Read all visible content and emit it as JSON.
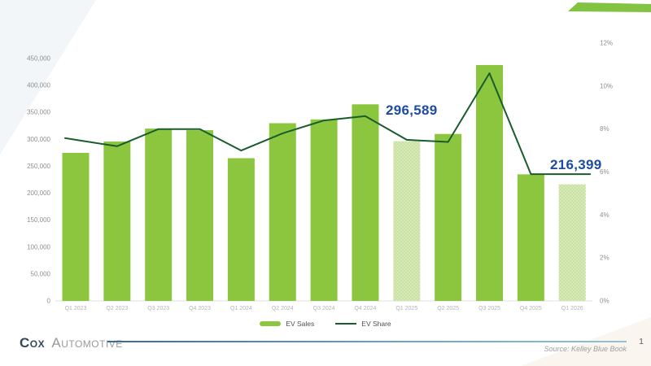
{
  "chart_data": {
    "type": "bar+line",
    "title": "",
    "grid": false,
    "categories": [
      "Q1 2023",
      "Q2 2023",
      "Q3 2023",
      "Q4 2023",
      "Q1 2024",
      "Q2 2024",
      "Q3 2024",
      "Q4 2024",
      "Q1 2025",
      "Q2 2025",
      "Q3 2025",
      "Q4 2025",
      "Q1 2026"
    ],
    "series": [
      {
        "name": "EV Sales",
        "type": "bar",
        "axis": "left",
        "values": [
          275000,
          296000,
          320000,
          317000,
          265000,
          330000,
          337000,
          365000,
          296589,
          310000,
          438000,
          235000,
          216399
        ],
        "forecast_indices": [
          8,
          12
        ]
      },
      {
        "name": "EV Share",
        "type": "line",
        "axis": "right",
        "values": [
          7.5,
          7.2,
          8.0,
          8.0,
          7.0,
          7.8,
          8.4,
          8.6,
          7.5,
          7.4,
          10.6,
          5.9,
          5.9
        ]
      }
    ],
    "left_axis": {
      "min": 0,
      "max": 450000,
      "tick_labels": [
        "0",
        "50,000",
        "100,000",
        "150,000",
        "200,000",
        "250,000",
        "300,000",
        "350,000",
        "400,000",
        "450,000"
      ]
    },
    "right_axis": {
      "min": 0,
      "max": 12,
      "tick_labels": [
        "0%",
        "2%",
        "4%",
        "6%",
        "8%",
        "10%",
        "12%"
      ]
    },
    "annotations": [
      {
        "text": "296,589",
        "category": "Q1 2025"
      },
      {
        "text": "216,399",
        "category": "Q1 2026"
      }
    ],
    "legend": {
      "position": "bottom",
      "items": [
        {
          "label": "EV Sales",
          "swatch": "bar"
        },
        {
          "label": "EV Share",
          "swatch": "line"
        }
      ]
    }
  },
  "colors": {
    "bar": "#8cc63f",
    "bar_forecast_bg": "#d6e9b6",
    "bar_forecast_dot": "#b5d488",
    "line": "#1a5c2c",
    "annotation": "#1e4ca1",
    "axis_text": "#8f8f8f",
    "x_label_text": "#b3b3b3",
    "baseline": "#e0e0e0",
    "corner_accent": "#82c341"
  },
  "footer": {
    "logo_primary": "Cox",
    "logo_secondary": "Automotive",
    "source": "Source: Kelley Blue Book",
    "page_number": "1"
  }
}
